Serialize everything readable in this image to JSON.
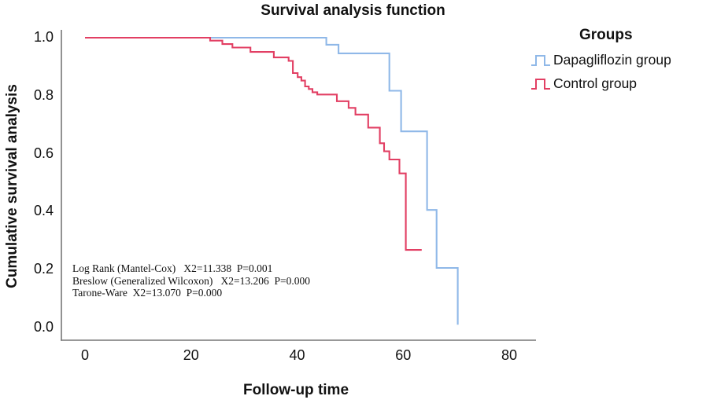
{
  "title": "Survival analysis function",
  "axes": {
    "x": {
      "label": "Follow-up time",
      "ticks": [
        "0",
        "20",
        "40",
        "60",
        "80"
      ],
      "tick_values": [
        0,
        20,
        40,
        60,
        80
      ],
      "range": [
        0,
        80
      ]
    },
    "y": {
      "label": "Cumulative survival analysis",
      "ticks": [
        "1.0",
        "0.8",
        "0.6",
        "0.4",
        "0.2",
        "0.0"
      ],
      "tick_values": [
        1.0,
        0.8,
        0.6,
        0.4,
        0.2,
        0.0
      ],
      "range": [
        0.0,
        1.0
      ]
    }
  },
  "legend": {
    "title": "Groups",
    "items": [
      {
        "label": "Dapagliflozin group",
        "color": "#8fb8e8"
      },
      {
        "label": "Control group",
        "color": "#e23f63"
      }
    ]
  },
  "annotation": {
    "lines": [
      "Log Rank (Mantel-Cox)   X2=11.338  P=0.001",
      "Breslow (Generalized Wilcoxon)   X2=13.206  P=0.000",
      "Tarone-Ware  X2=13.070  P=0.000"
    ]
  },
  "chart_data": {
    "type": "line",
    "subtype": "kaplan-meier-step",
    "title": "Survival analysis function",
    "xlabel": "Follow-up time",
    "ylabel": "Cumulative survival analysis",
    "xlim": [
      0,
      80
    ],
    "ylim": [
      0.0,
      1.0
    ],
    "x_ticks": [
      0,
      20,
      40,
      60,
      80
    ],
    "y_ticks": [
      1.0,
      0.8,
      0.6,
      0.4,
      0.2,
      0.0
    ],
    "grid": false,
    "legend_position": "right",
    "axis_color": "#767676",
    "series": [
      {
        "name": "Dapagliflozin group",
        "color": "#8fb8e8",
        "start": [
          0,
          1.0
        ],
        "drops": [
          [
            45.5,
            0.976
          ],
          [
            47.8,
            0.946
          ],
          [
            57.4,
            0.817
          ],
          [
            59.6,
            0.677
          ],
          [
            64.5,
            0.406
          ],
          [
            66.3,
            0.206
          ],
          [
            70.3,
            0.01
          ]
        ],
        "end_t": 70.3
      },
      {
        "name": "Control group",
        "color": "#e23f63",
        "start": [
          0,
          1.0
        ],
        "drops": [
          [
            23.6,
            0.99
          ],
          [
            25.9,
            0.978
          ],
          [
            27.8,
            0.966
          ],
          [
            31.2,
            0.951
          ],
          [
            35.6,
            0.932
          ],
          [
            38.4,
            0.92
          ],
          [
            39.2,
            0.878
          ],
          [
            40.1,
            0.864
          ],
          [
            40.8,
            0.852
          ],
          [
            41.5,
            0.832
          ],
          [
            42.2,
            0.823
          ],
          [
            42.9,
            0.812
          ],
          [
            43.8,
            0.804
          ],
          [
            47.5,
            0.781
          ],
          [
            49.7,
            0.758
          ],
          [
            51.0,
            0.735
          ],
          [
            53.4,
            0.69
          ],
          [
            55.6,
            0.636
          ],
          [
            56.4,
            0.608
          ],
          [
            57.4,
            0.58
          ],
          [
            59.3,
            0.532
          ],
          [
            60.5,
            0.268
          ]
        ],
        "end_t": 63.5
      }
    ],
    "stats": [
      {
        "test": "Log Rank (Mantel-Cox)",
        "chi2": "11.338",
        "p": "0.001"
      },
      {
        "test": "Breslow (Generalized Wilcoxon)",
        "chi2": "13.206",
        "p": "0.000"
      },
      {
        "test": "Tarone-Ware",
        "chi2": "13.070",
        "p": "0.000"
      }
    ]
  }
}
